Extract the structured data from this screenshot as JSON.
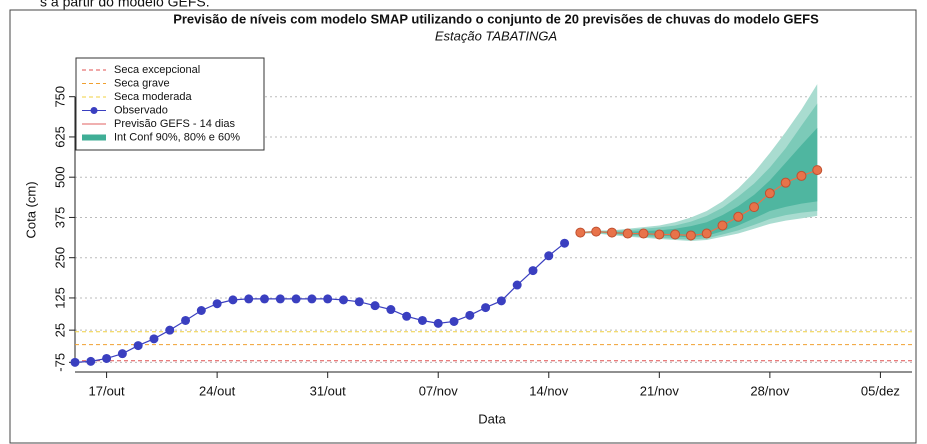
{
  "caption_fragment": "s a partir do modelo GEFS.",
  "chart_data": {
    "type": "line",
    "title": "Previsão de níveis com modelo SMAP utilizando o conjunto de 20 previsões de chuvas do modelo GEFS",
    "subtitle": "Estação TABATINGA",
    "x_label": "Data",
    "y_label": "Cota (cm)",
    "xlim": [
      "15/out",
      "07/dez"
    ],
    "xticks": [
      "17/out",
      "24/out",
      "31/out",
      "07/nov",
      "14/nov",
      "21/nov",
      "28/nov",
      "05/dez"
    ],
    "ylim": [
      -105,
      895
    ],
    "yticks": [
      -75,
      25,
      125,
      250,
      375,
      500,
      625,
      750
    ],
    "grid": true,
    "legend": "top-left",
    "thresholds": [
      {
        "name": "Seca excepcional",
        "value": -70,
        "color": "#e05050"
      },
      {
        "name": "Seca grave",
        "value": -20,
        "color": "#f0a030"
      },
      {
        "name": "Seca moderada",
        "value": 20,
        "color": "#f0d040"
      }
    ],
    "series": [
      {
        "name": "Observado",
        "color": "#3a3fc0",
        "x": [
          "15/out",
          "16/out",
          "17/out",
          "18/out",
          "19/out",
          "20/out",
          "21/out",
          "22/out",
          "23/out",
          "24/out",
          "25/out",
          "26/out",
          "27/out",
          "28/out",
          "29/out",
          "30/out",
          "31/out",
          "01/nov",
          "02/nov",
          "03/nov",
          "04/nov",
          "05/nov",
          "06/nov",
          "07/nov",
          "08/nov",
          "09/nov",
          "10/nov",
          "11/nov",
          "12/nov",
          "13/nov",
          "14/nov",
          "15/nov"
        ],
        "values": [
          -75,
          -72,
          -63,
          -48,
          -23,
          -2,
          25,
          55,
          86,
          107,
          119,
          122,
          122,
          122,
          122,
          122,
          122,
          119,
          113,
          101,
          89,
          68,
          55,
          46,
          52,
          71,
          95,
          116,
          165,
          210,
          256,
          295
        ]
      },
      {
        "name": "Previsão GEFS - 14 dias",
        "color": "#e8734a",
        "legend_color": "#e06060",
        "x": [
          "16/nov",
          "17/nov",
          "18/nov",
          "19/nov",
          "20/nov",
          "21/nov",
          "22/nov",
          "23/nov",
          "24/nov",
          "25/nov",
          "26/nov",
          "27/nov",
          "28/nov",
          "29/nov",
          "30/nov",
          "01/dez"
        ],
        "values": [
          328,
          331,
          328,
          325,
          325,
          322,
          322,
          319,
          325,
          350,
          377,
          407,
          450,
          483,
          504,
          522
        ]
      }
    ],
    "bands_name": "Int Conf 90%, 80% e 60%",
    "bands_color": "#3fae96",
    "bands": [
      {
        "color": "#a9dcd0",
        "upper": [
          330,
          335,
          335,
          340,
          345,
          350,
          360,
          375,
          395,
          425,
          465,
          515,
          575,
          640,
          710,
          789
        ],
        "lower": [
          325,
          325,
          320,
          315,
          312,
          308,
          305,
          302,
          305,
          315,
          325,
          340,
          355,
          365,
          372,
          380
        ]
      },
      {
        "color": "#7ccab8",
        "upper": [
          330,
          333,
          333,
          336,
          340,
          344,
          350,
          362,
          380,
          405,
          440,
          480,
          530,
          590,
          660,
          729
        ],
        "lower": [
          326,
          327,
          323,
          318,
          315,
          312,
          309,
          306,
          310,
          322,
          335,
          352,
          370,
          382,
          390,
          395
        ]
      },
      {
        "color": "#4fb6a0",
        "upper": [
          329,
          332,
          330,
          330,
          333,
          335,
          340,
          348,
          360,
          382,
          410,
          445,
          490,
          545,
          600,
          653
        ],
        "lower": [
          327,
          329,
          325,
          321,
          320,
          318,
          316,
          313,
          318,
          332,
          350,
          372,
          395,
          408,
          418,
          425
        ]
      }
    ]
  }
}
